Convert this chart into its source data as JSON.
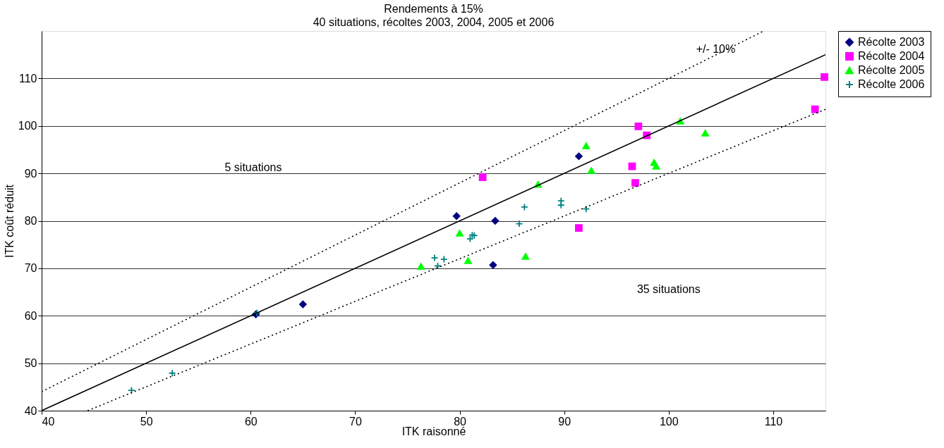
{
  "chart_data": {
    "type": "scatter",
    "title": "Rendements à 15%",
    "subtitle": "40 situations, récoltes 2003, 2004, 2005 et 2006",
    "xlabel": "ITK raisonné",
    "ylabel": "ITK coût réduit",
    "xlim": [
      40,
      115
    ],
    "ylim": [
      40,
      120
    ],
    "xticks": [
      40,
      50,
      60,
      70,
      80,
      90,
      100,
      110
    ],
    "yticks": [
      40,
      50,
      60,
      70,
      80,
      90,
      100,
      110
    ],
    "grid": "y",
    "legend": "right",
    "series": [
      {
        "name": "Récolte 2003",
        "color": "#000080",
        "marker": "diamond",
        "x": [
          60.5,
          65.0,
          79.7,
          83.4,
          83.2,
          91.4
        ],
        "values": [
          60.3,
          62.4,
          81.0,
          80.0,
          70.7,
          93.6
        ]
      },
      {
        "name": "Récolte 2004",
        "color": "#ff00ff",
        "marker": "square",
        "x": [
          82.2,
          91.4,
          97.1,
          97.9,
          96.5,
          96.8,
          114.0,
          114.9
        ],
        "values": [
          89.2,
          78.5,
          99.9,
          98.0,
          91.5,
          88.0,
          103.5,
          110.3
        ]
      },
      {
        "name": "Récolte 2005",
        "color": "#00ff00",
        "marker": "triangle",
        "x": [
          76.3,
          80.0,
          80.8,
          86.3,
          87.5,
          92.1,
          92.6,
          98.6,
          98.8,
          101.1,
          103.5
        ],
        "values": [
          70.4,
          77.4,
          71.6,
          72.5,
          87.7,
          95.8,
          90.6,
          92.3,
          91.5,
          101.0,
          98.5
        ]
      },
      {
        "name": "Récolte 2006",
        "color": "#008080",
        "marker": "cross",
        "x": [
          48.6,
          52.5,
          60.6,
          77.6,
          77.9,
          78.5,
          81.0,
          81.2,
          81.4,
          85.7,
          86.2,
          89.7,
          89.7,
          92.1
        ],
        "values": [
          44.3,
          47.9,
          60.6,
          72.2,
          70.5,
          71.9,
          76.2,
          77.0,
          76.9,
          79.4,
          82.9,
          84.2,
          83.3,
          82.5
        ]
      },
      {
        "type": "line",
        "color": "#000000",
        "line_style": "solid",
        "x": [
          40,
          115
        ],
        "values": [
          40,
          115
        ]
      },
      {
        "type": "line",
        "color": "#000000",
        "line_style": "dotted",
        "x": [
          40,
          109
        ],
        "values": [
          44,
          119.9
        ]
      },
      {
        "type": "line",
        "color": "#000000",
        "line_style": "dotted",
        "x": [
          44.4,
          115
        ],
        "values": [
          40,
          103.5
        ]
      }
    ],
    "annotations": [
      {
        "text": "+/- 10%",
        "x": 104.5,
        "y": 115
      },
      "5 situations",
      "35 situations"
    ]
  }
}
